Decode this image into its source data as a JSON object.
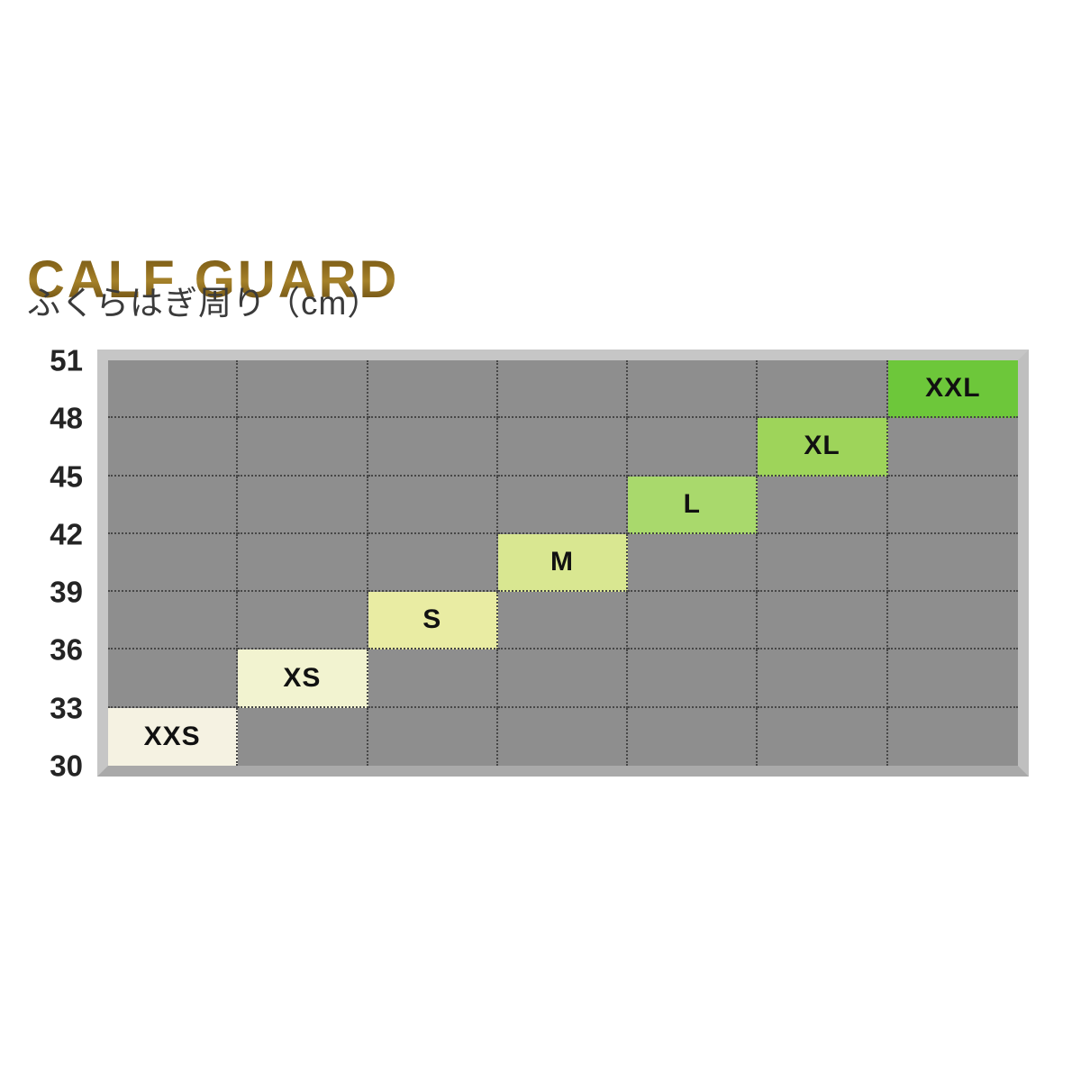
{
  "header": {
    "title": "CALF GUARD",
    "subtitle": "ふくらはぎ周り（cm）"
  },
  "colors": {
    "title_gold": "#8a681c",
    "grid_background": "#8e8e8e",
    "grid_frame": "#c6c6c6",
    "dotted_line": "#474747",
    "tick_text": "#242424",
    "size_label_text": "#111111",
    "page_background": "#ffffff"
  },
  "chart_data": {
    "type": "heatmap",
    "title": "CALF GUARD",
    "ylabel": "ふくらはぎ周り（cm）",
    "unit": "cm",
    "ylim": [
      30,
      51
    ],
    "y_ticks": [
      51,
      48,
      45,
      42,
      39,
      36,
      33,
      30
    ],
    "rows": 7,
    "columns": 7,
    "grid": "dotted",
    "legend_position": "none",
    "sizes": [
      {
        "label": "XXS",
        "min_cm": 30,
        "max_cm": 33,
        "color": "#f5f2e2"
      },
      {
        "label": "XS",
        "min_cm": 33,
        "max_cm": 36,
        "color": "#f2f3d0"
      },
      {
        "label": "S",
        "min_cm": 36,
        "max_cm": 39,
        "color": "#e9eca3"
      },
      {
        "label": "M",
        "min_cm": 39,
        "max_cm": 42,
        "color": "#d9e791"
      },
      {
        "label": "L",
        "min_cm": 42,
        "max_cm": 45,
        "color": "#a9d96c"
      },
      {
        "label": "XL",
        "min_cm": 45,
        "max_cm": 48,
        "color": "#9ed45a"
      },
      {
        "label": "XXL",
        "min_cm": 48,
        "max_cm": 51,
        "color": "#6dc73a"
      }
    ]
  }
}
